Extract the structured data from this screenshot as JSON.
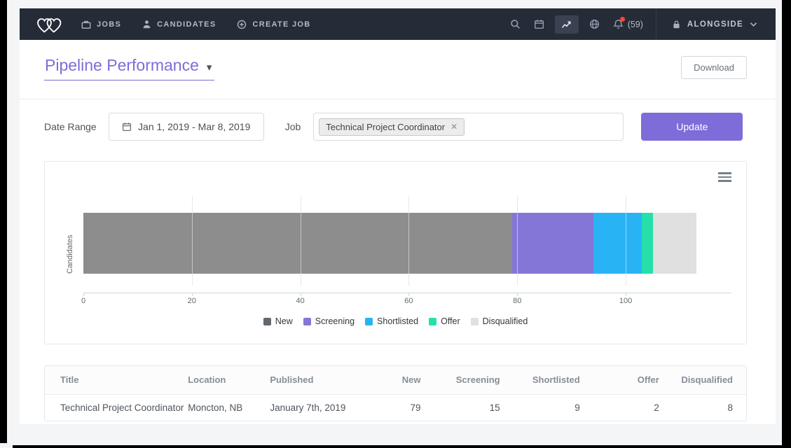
{
  "colors": {
    "accent_purple": "#7e6cd9",
    "navbar_bg": "#252b37",
    "notification_red": "#ff4538"
  },
  "navbar": {
    "items": [
      {
        "label": "JOBS"
      },
      {
        "label": "CANDIDATES"
      },
      {
        "label": "CREATE JOB"
      }
    ],
    "notifications_count": "(59)",
    "account_label": "ALONGSIDE"
  },
  "header": {
    "title": "Pipeline Performance",
    "download_label": "Download"
  },
  "filters": {
    "date_range_label": "Date Range",
    "date_range_value": "Jan 1, 2019 - Mar 8, 2019",
    "job_label": "Job",
    "job_tag": "Technical Project Coordinator",
    "update_label": "Update"
  },
  "chart_data": {
    "type": "bar",
    "orientation": "horizontal",
    "stacked": true,
    "categories": [
      "Candidates"
    ],
    "ylabel": "Candidates",
    "series": [
      {
        "name": "New",
        "values": [
          79
        ],
        "color": "#8d8d8d",
        "legend_color": "#63686d"
      },
      {
        "name": "Screening",
        "values": [
          15
        ],
        "color": "#8476d7"
      },
      {
        "name": "Shortlisted",
        "values": [
          9
        ],
        "color": "#28b4f4"
      },
      {
        "name": "Offer",
        "values": [
          2
        ],
        "color": "#25e0ab"
      },
      {
        "name": "Disqualified",
        "values": [
          8
        ],
        "color": "#e0e0e0"
      }
    ],
    "xlim": [
      0,
      119.5
    ],
    "xticks": [
      0,
      20,
      40,
      60,
      80,
      100
    ],
    "grid": true,
    "legend_position": "bottom"
  },
  "table": {
    "columns": [
      {
        "label": "Title",
        "align": "left"
      },
      {
        "label": "Location",
        "align": "left"
      },
      {
        "label": "Published",
        "align": "left"
      },
      {
        "label": "New",
        "align": "right"
      },
      {
        "label": "Screening",
        "align": "right"
      },
      {
        "label": "Shortlisted",
        "align": "right"
      },
      {
        "label": "Offer",
        "align": "right"
      },
      {
        "label": "Disqualified",
        "align": "right"
      }
    ],
    "rows": [
      [
        "Technical Project Coordinator",
        "Moncton, NB",
        "January 7th, 2019",
        "79",
        "15",
        "9",
        "2",
        "8"
      ]
    ]
  }
}
